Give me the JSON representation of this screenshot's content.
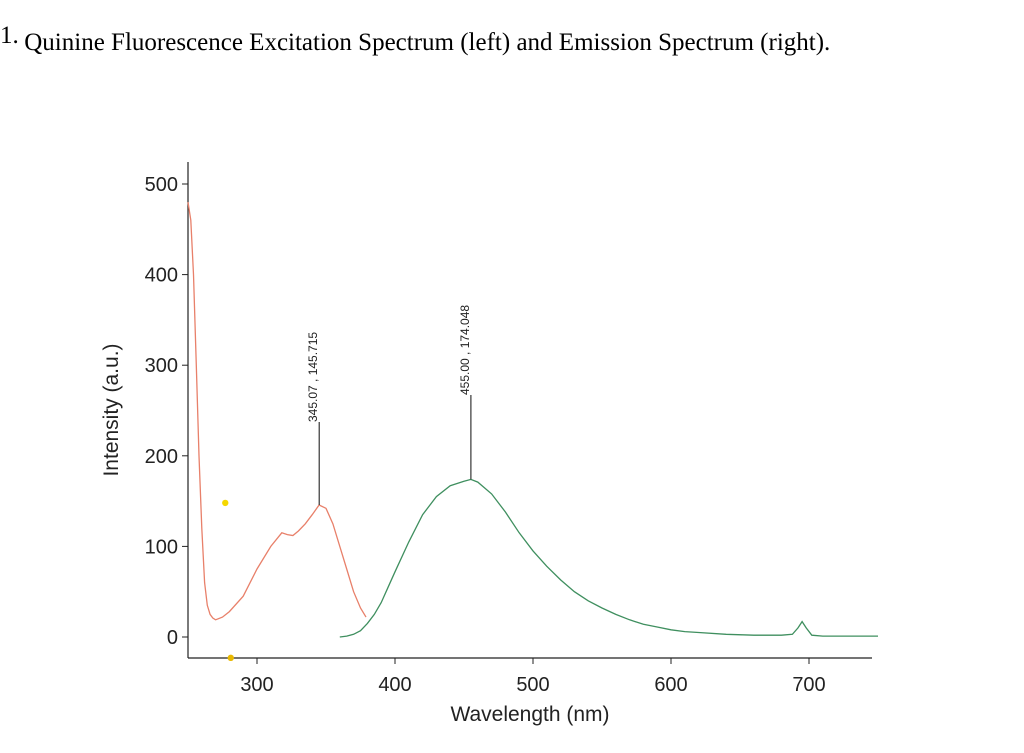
{
  "caption": {
    "number": "1.",
    "text": "Quinine Fluorescence Excitation Spectrum (left) and Emission Spectrum (right)."
  },
  "chart_data": {
    "type": "line",
    "title": "",
    "xlabel": "Wavelength (nm)",
    "ylabel": "Intensity (a.u.)",
    "xlim": [
      250,
      750
    ],
    "ylim": [
      -10,
      520
    ],
    "xticks": [
      300,
      400,
      500,
      600,
      700
    ],
    "yticks": [
      0,
      100,
      200,
      300,
      400,
      500
    ],
    "grid": false,
    "series": [
      {
        "color": "#e8806a",
        "points": [
          [
            250,
            480
          ],
          [
            252,
            460
          ],
          [
            254,
            400
          ],
          [
            256,
            300
          ],
          [
            258,
            200
          ],
          [
            260,
            120
          ],
          [
            262,
            60
          ],
          [
            264,
            35
          ],
          [
            266,
            25
          ],
          [
            268,
            21
          ],
          [
            270,
            19
          ],
          [
            275,
            22
          ],
          [
            280,
            28
          ],
          [
            290,
            45
          ],
          [
            300,
            75
          ],
          [
            310,
            100
          ],
          [
            318,
            115
          ],
          [
            322,
            113
          ],
          [
            326,
            112
          ],
          [
            330,
            117
          ],
          [
            335,
            125
          ],
          [
            340,
            135
          ],
          [
            345,
            145.7
          ],
          [
            350,
            142
          ],
          [
            355,
            125
          ],
          [
            360,
            100
          ],
          [
            365,
            75
          ],
          [
            370,
            50
          ],
          [
            375,
            32
          ],
          [
            379,
            22
          ]
        ]
      },
      {
        "color": "#3f8f5f",
        "points": [
          [
            360,
            0
          ],
          [
            365,
            1
          ],
          [
            370,
            3
          ],
          [
            375,
            7
          ],
          [
            380,
            15
          ],
          [
            385,
            25
          ],
          [
            390,
            38
          ],
          [
            395,
            55
          ],
          [
            400,
            72
          ],
          [
            410,
            105
          ],
          [
            420,
            135
          ],
          [
            430,
            155
          ],
          [
            440,
            167
          ],
          [
            450,
            172
          ],
          [
            455,
            174
          ],
          [
            460,
            171
          ],
          [
            470,
            158
          ],
          [
            480,
            138
          ],
          [
            490,
            115
          ],
          [
            500,
            95
          ],
          [
            510,
            78
          ],
          [
            520,
            63
          ],
          [
            530,
            50
          ],
          [
            540,
            40
          ],
          [
            550,
            32
          ],
          [
            560,
            25
          ],
          [
            570,
            19
          ],
          [
            580,
            14
          ],
          [
            590,
            11
          ],
          [
            600,
            8
          ],
          [
            610,
            6
          ],
          [
            620,
            5
          ],
          [
            640,
            3
          ],
          [
            660,
            2
          ],
          [
            680,
            2
          ],
          [
            688,
            3
          ],
          [
            692,
            10
          ],
          [
            695,
            17
          ],
          [
            698,
            10
          ],
          [
            702,
            2
          ],
          [
            710,
            1
          ],
          [
            750,
            1
          ]
        ]
      }
    ],
    "annotations": [
      {
        "x": 345.07,
        "y": 145.715,
        "label": "345.07 , 145.715"
      },
      {
        "x": 455.0,
        "y": 174.048,
        "label": "455.00 , 174.048"
      }
    ],
    "markers": [
      {
        "x": 277,
        "y": 148,
        "color": "#f5d800"
      },
      {
        "x": 281,
        "y": -23,
        "color": "#e8b800"
      }
    ]
  }
}
